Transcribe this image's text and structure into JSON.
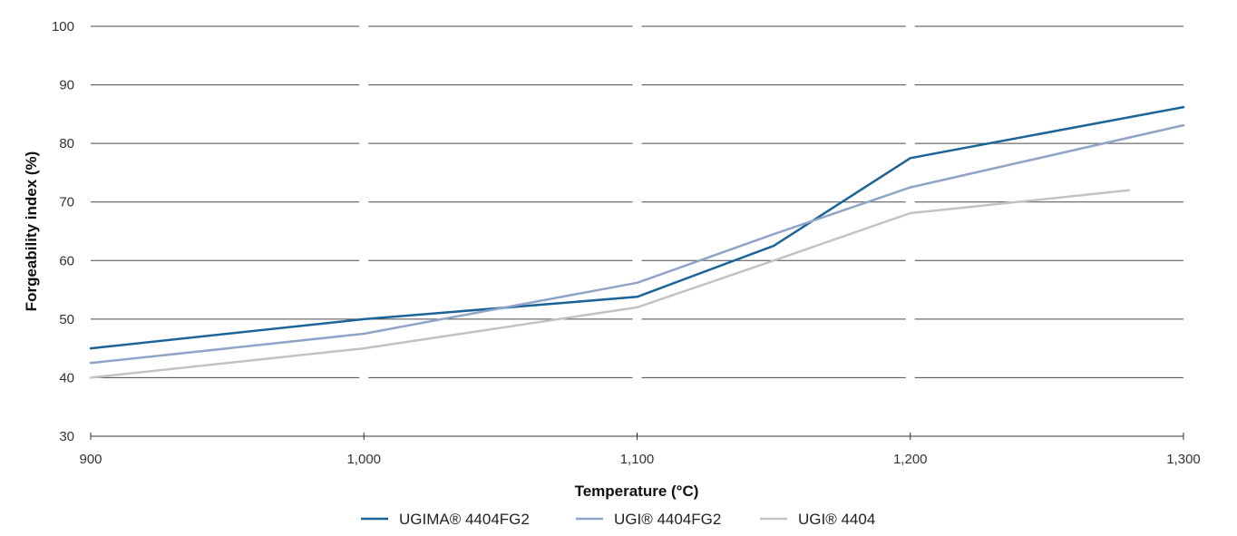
{
  "chart_data": {
    "type": "line",
    "xlabel": "Temperature (°C)",
    "ylabel": "Forgeability index (%)",
    "xlim": [
      900,
      1300
    ],
    "ylim": [
      30,
      100
    ],
    "x_ticks": [
      900,
      1000,
      1100,
      1200,
      1300
    ],
    "x_tick_labels": [
      "900",
      "1,000",
      "1,100",
      "1,200",
      "1,300"
    ],
    "y_ticks": [
      30,
      40,
      50,
      60,
      70,
      80,
      90,
      100
    ],
    "y_tick_labels": [
      "30",
      "40",
      "50",
      "60",
      "70",
      "80",
      "90",
      "100"
    ],
    "grid": "horizontal",
    "legend_position": "bottom",
    "series": [
      {
        "name": "UGIMA® 4404FG2",
        "color": "#1b6498",
        "points": [
          [
            900,
            45
          ],
          [
            1000,
            50
          ],
          [
            1100,
            53.8
          ],
          [
            1150,
            62.5
          ],
          [
            1200,
            77.5
          ],
          [
            1300,
            86.2
          ]
        ]
      },
      {
        "name": "UGI® 4404FG2",
        "color": "#8fa4c7",
        "points": [
          [
            900,
            42.5
          ],
          [
            1000,
            47.5
          ],
          [
            1100,
            56.2
          ],
          [
            1150,
            64.5
          ],
          [
            1200,
            72.5
          ],
          [
            1300,
            83.1
          ]
        ]
      },
      {
        "name": "UGI® 4404",
        "color": "#c3c3c3",
        "points": [
          [
            900,
            40
          ],
          [
            1000,
            45
          ],
          [
            1100,
            52
          ],
          [
            1150,
            60
          ],
          [
            1200,
            68.1
          ],
          [
            1280,
            72
          ]
        ]
      }
    ]
  }
}
